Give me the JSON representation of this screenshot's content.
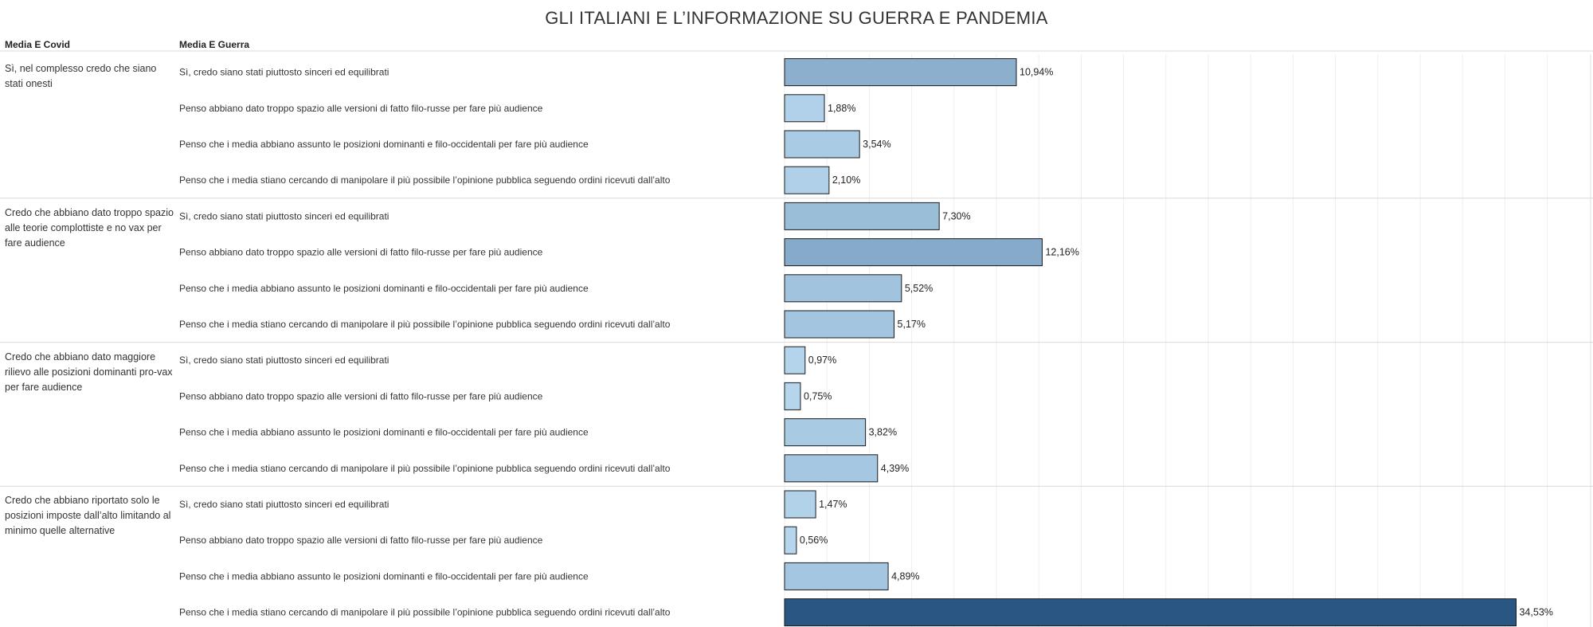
{
  "title": "GLI ITALIANI E L’INFORMAZIONE SU GUERRA E PANDEMIA",
  "headers": {
    "covid": "Media E Covid",
    "guerra": "Media E Guerra"
  },
  "chart_data": {
    "type": "bar",
    "orientation": "horizontal",
    "title": "GLI ITALIANI E L’INFORMAZIONE SU GUERRA E PANDEMIA",
    "row_dimensions": [
      "Media E Covid",
      "Media E Guerra"
    ],
    "xlim": [
      0,
      36
    ],
    "grid": true,
    "color_scale": {
      "low": "#b8d8ef",
      "high": "#2a5683"
    },
    "groups": [
      {
        "label": "Sì, nel complesso credo che siano stati onesti",
        "rows": [
          {
            "label": "Sì, credo siano stati piuttosto sinceri ed equilibrati",
            "value": 10.94,
            "value_label": "10,94%"
          },
          {
            "label": "Penso abbiano dato troppo spazio alle versioni di fatto filo-russe per fare più audience",
            "value": 1.88,
            "value_label": "1,88%"
          },
          {
            "label": "Penso che i media abbiano assunto le posizioni dominanti e filo-occidentali per fare più audience",
            "value": 3.54,
            "value_label": "3,54%"
          },
          {
            "label": "Penso che i media stiano cercando di manipolare il più possibile l’opinione pubblica seguendo ordini ricevuti dall’alto",
            "value": 2.1,
            "value_label": "2,10%"
          }
        ]
      },
      {
        "label": "Credo che abbiano dato troppo spazio alle teorie complottiste e no vax per fare audience",
        "rows": [
          {
            "label": "Sì, credo siano stati piuttosto sinceri ed equilibrati",
            "value": 7.3,
            "value_label": "7,30%"
          },
          {
            "label": "Penso abbiano dato troppo spazio alle versioni di fatto filo-russe per fare più audience",
            "value": 12.16,
            "value_label": "12,16%"
          },
          {
            "label": "Penso che i media abbiano assunto le posizioni dominanti e filo-occidentali per fare più audience",
            "value": 5.52,
            "value_label": "5,52%"
          },
          {
            "label": "Penso che i media stiano cercando di manipolare il più possibile l’opinione pubblica seguendo ordini ricevuti dall’alto",
            "value": 5.17,
            "value_label": "5,17%"
          }
        ]
      },
      {
        "label": "Credo che abbiano dato maggiore rilievo alle posizioni dominanti pro-vax per fare audience",
        "rows": [
          {
            "label": "Sì, credo siano stati piuttosto sinceri ed equilibrati",
            "value": 0.97,
            "value_label": "0,97%"
          },
          {
            "label": "Penso abbiano dato troppo spazio alle versioni di fatto filo-russe per fare più audience",
            "value": 0.75,
            "value_label": "0,75%"
          },
          {
            "label": "Penso che i media abbiano assunto le posizioni dominanti e filo-occidentali per fare più audience",
            "value": 3.82,
            "value_label": "3,82%"
          },
          {
            "label": "Penso che i media stiano cercando di manipolare il più possibile l’opinione pubblica seguendo ordini ricevuti dall’alto",
            "value": 4.39,
            "value_label": "4,39%"
          }
        ]
      },
      {
        "label": "Credo che abbiano riportato solo le posizioni imposte dall’alto limitando al minimo quelle alternative",
        "rows": [
          {
            "label": "Sì, credo siano stati piuttosto sinceri ed equilibrati",
            "value": 1.47,
            "value_label": "1,47%"
          },
          {
            "label": "Penso abbiano dato troppo spazio alle versioni di fatto filo-russe per fare più audience",
            "value": 0.56,
            "value_label": "0,56%"
          },
          {
            "label": "Penso che i media abbiano assunto le posizioni dominanti e filo-occidentali per fare più audience",
            "value": 4.89,
            "value_label": "4,89%"
          },
          {
            "label": "Penso che i media stiano cercando di manipolare il più possibile l’opinione pubblica seguendo ordini ricevuti dall’alto",
            "value": 34.53,
            "value_label": "34,53%"
          }
        ]
      }
    ]
  }
}
